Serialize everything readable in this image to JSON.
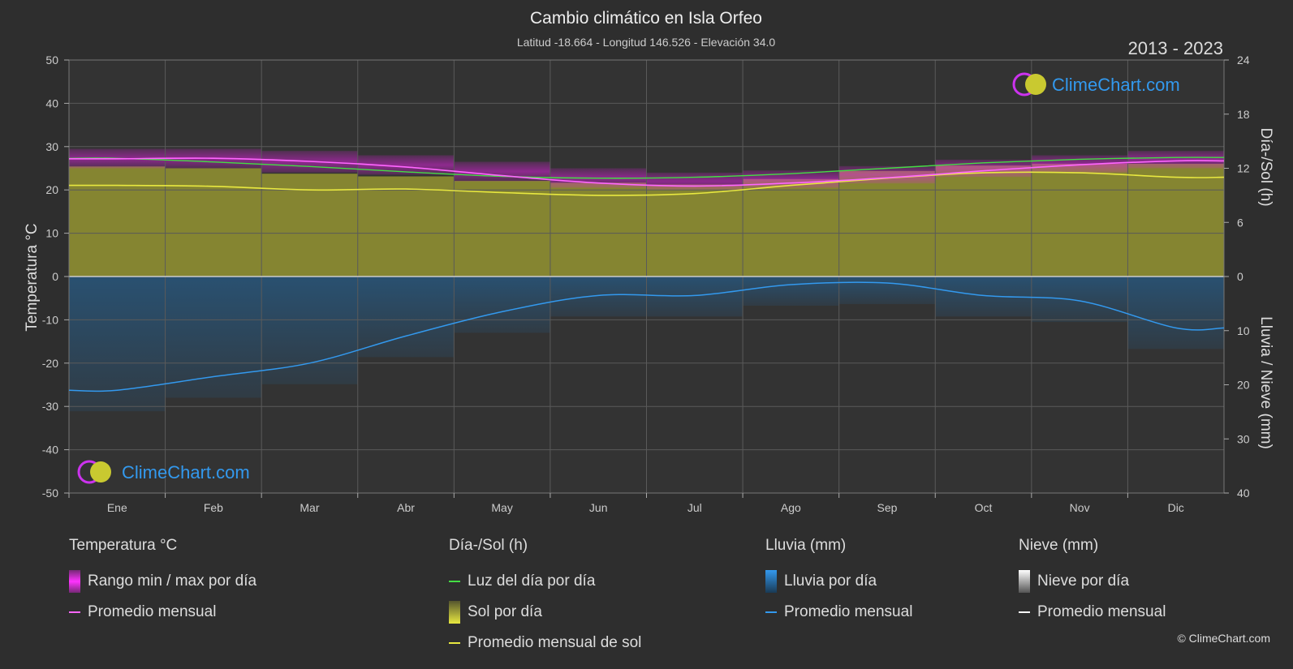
{
  "title": "Cambio climático en Isla Orfeo",
  "subtitle": "Latitud -18.664 - Longitud 146.526 - Elevación 34.0",
  "year_range": "2013 - 2023",
  "brand": "ClimeChart.com",
  "copyright": "© ClimeChart.com",
  "colors": {
    "background": "#2e2e2e",
    "temp_range": "#e020e0",
    "temp_avg": "#ff66ff",
    "daylight": "#44dd44",
    "sunshine_fill": "#b8b830",
    "sunshine_avg": "#e8e840",
    "rain_fill": "#1f6fb0",
    "rain_avg": "#3399ee",
    "snow": "#ffffff",
    "grid": "#5a5a5a",
    "zero_line": "#cccccc"
  },
  "chart_data": {
    "type": "line",
    "categories": [
      "Ene",
      "Feb",
      "Mar",
      "Abr",
      "May",
      "Jun",
      "Jul",
      "Ago",
      "Sep",
      "Oct",
      "Nov",
      "Dic"
    ],
    "axes": {
      "left": {
        "label": "Temperatura °C",
        "range": [
          -50,
          50
        ],
        "ticks": [
          "50",
          "40",
          "30",
          "20",
          "10",
          "0",
          "-10",
          "-20",
          "-30",
          "-40",
          "-50"
        ]
      },
      "right_top": {
        "label": "Día-/Sol (h)",
        "range": [
          0,
          24
        ],
        "ticks": [
          "24",
          "18",
          "12",
          "6",
          "0"
        ]
      },
      "right_bottom": {
        "label": "Lluvia / Nieve (mm)",
        "range": [
          0,
          40
        ],
        "ticks": [
          "0",
          "10",
          "20",
          "30",
          "40"
        ]
      }
    },
    "grid": true,
    "series": [
      {
        "name": "Rango min / max por día",
        "axis": "left",
        "min": [
          25.0,
          25.0,
          24.0,
          23.5,
          22.0,
          20.5,
          20.0,
          20.5,
          21.5,
          23.0,
          24.0,
          25.0
        ],
        "max": [
          29.5,
          29.5,
          29.0,
          28.0,
          26.5,
          25.0,
          24.0,
          24.5,
          25.5,
          27.0,
          28.0,
          29.0
        ]
      },
      {
        "name": "Promedio mensual",
        "kind": "temperature",
        "axis": "left",
        "values": [
          27.2,
          27.3,
          26.6,
          25.3,
          23.3,
          21.6,
          20.9,
          21.6,
          22.8,
          24.4,
          25.8,
          26.7
        ]
      },
      {
        "name": "Luz del día por día",
        "axis": "right_top",
        "values": [
          13.1,
          12.7,
          12.2,
          11.6,
          11.1,
          10.9,
          11.0,
          11.4,
          12.0,
          12.6,
          13.0,
          13.2
        ]
      },
      {
        "name": "Sol por día",
        "axis": "right_top",
        "values": [
          12.2,
          12.0,
          11.4,
          11.1,
          10.6,
          10.4,
          10.2,
          10.8,
          11.7,
          12.3,
          12.5,
          12.5
        ]
      },
      {
        "name": "Promedio mensual de sol",
        "axis": "right_top",
        "values": [
          10.1,
          10.0,
          9.6,
          9.7,
          9.3,
          9.0,
          9.2,
          10.1,
          10.9,
          11.5,
          11.5,
          11.0
        ]
      },
      {
        "name": "Promedio mensual",
        "kind": "rain",
        "axis": "right_bottom",
        "values": [
          21.0,
          18.5,
          16.0,
          11.0,
          6.5,
          3.5,
          3.5,
          1.5,
          1.2,
          3.5,
          4.5,
          9.5
        ]
      },
      {
        "name": "Promedio mensual",
        "kind": "snow",
        "axis": "right_bottom",
        "values": [
          0,
          0,
          0,
          0,
          0,
          0,
          0,
          0,
          0,
          0,
          0,
          0
        ]
      }
    ]
  },
  "legend": {
    "temperature": {
      "title": "Temperatura °C",
      "items": [
        "Rango min / max por día",
        "Promedio mensual"
      ]
    },
    "sun": {
      "title": "Día-/Sol (h)",
      "items": [
        "Luz del día por día",
        "Sol por día",
        "Promedio mensual de sol"
      ]
    },
    "rain": {
      "title": "Lluvia (mm)",
      "items": [
        "Lluvia por día",
        "Promedio mensual"
      ]
    },
    "snow": {
      "title": "Nieve (mm)",
      "items": [
        "Nieve por día",
        "Promedio mensual"
      ]
    }
  }
}
